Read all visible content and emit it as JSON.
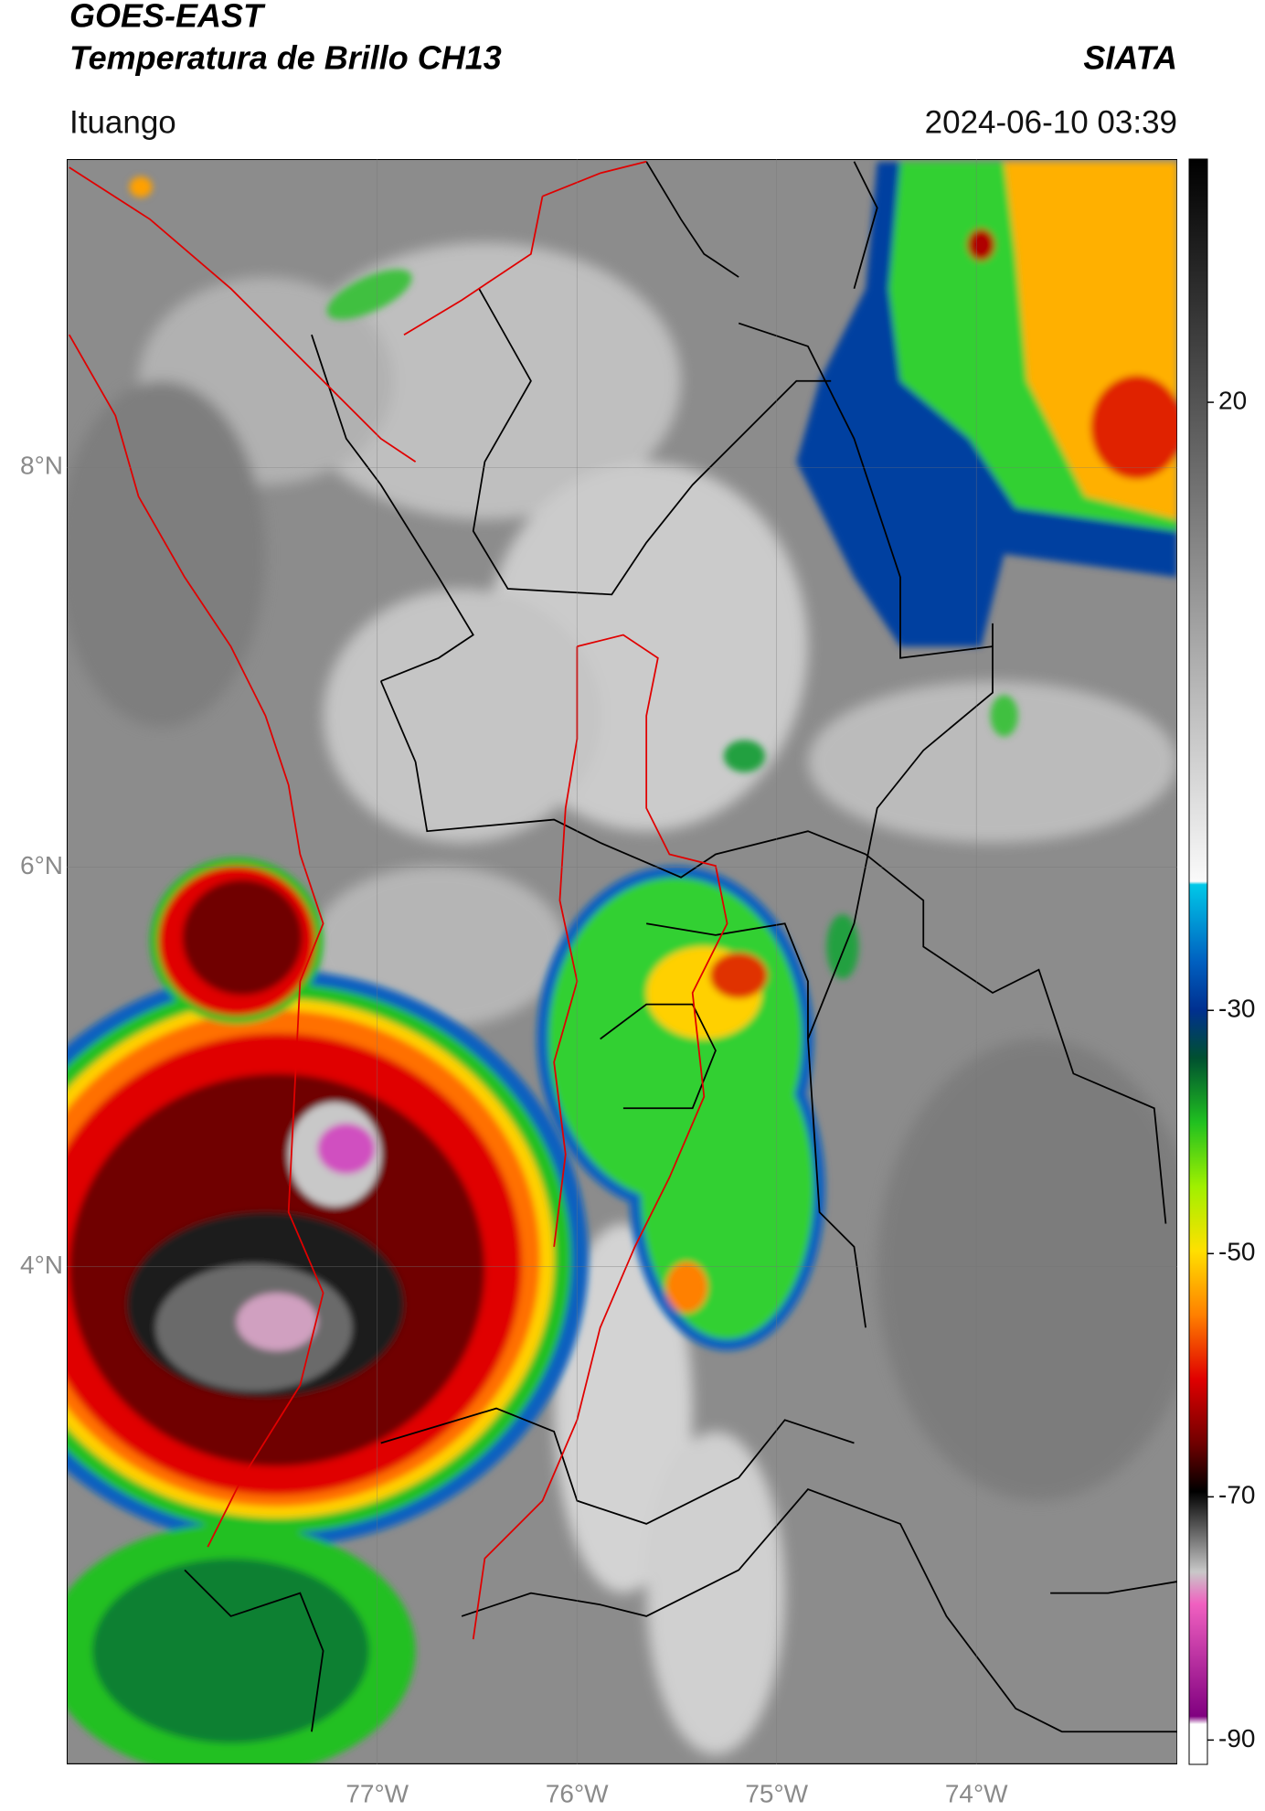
{
  "header": {
    "title": "GOES-EAST",
    "subtitle": "Temperatura de Brillo CH13",
    "brand": "SIATA",
    "location": "Ituango",
    "datetime": "2024-06-10 03:39"
  },
  "map": {
    "xlim": [
      -78.555,
      -72.994
    ],
    "ylim": [
      1.509,
      9.543
    ],
    "xticks": [
      {
        "value": -77,
        "label": "77°W"
      },
      {
        "value": -76,
        "label": "76°W"
      },
      {
        "value": -75,
        "label": "75°W"
      },
      {
        "value": -74,
        "label": "74°W"
      }
    ],
    "yticks": [
      {
        "value": 8,
        "label": "8°N"
      },
      {
        "value": 6,
        "label": "6°N"
      },
      {
        "value": 4,
        "label": "4°N"
      }
    ],
    "grid": true
  },
  "colorbar": {
    "lim": [
      -92,
      40
    ],
    "ticks": [
      20,
      -30,
      -50,
      -70,
      -90
    ]
  }
}
